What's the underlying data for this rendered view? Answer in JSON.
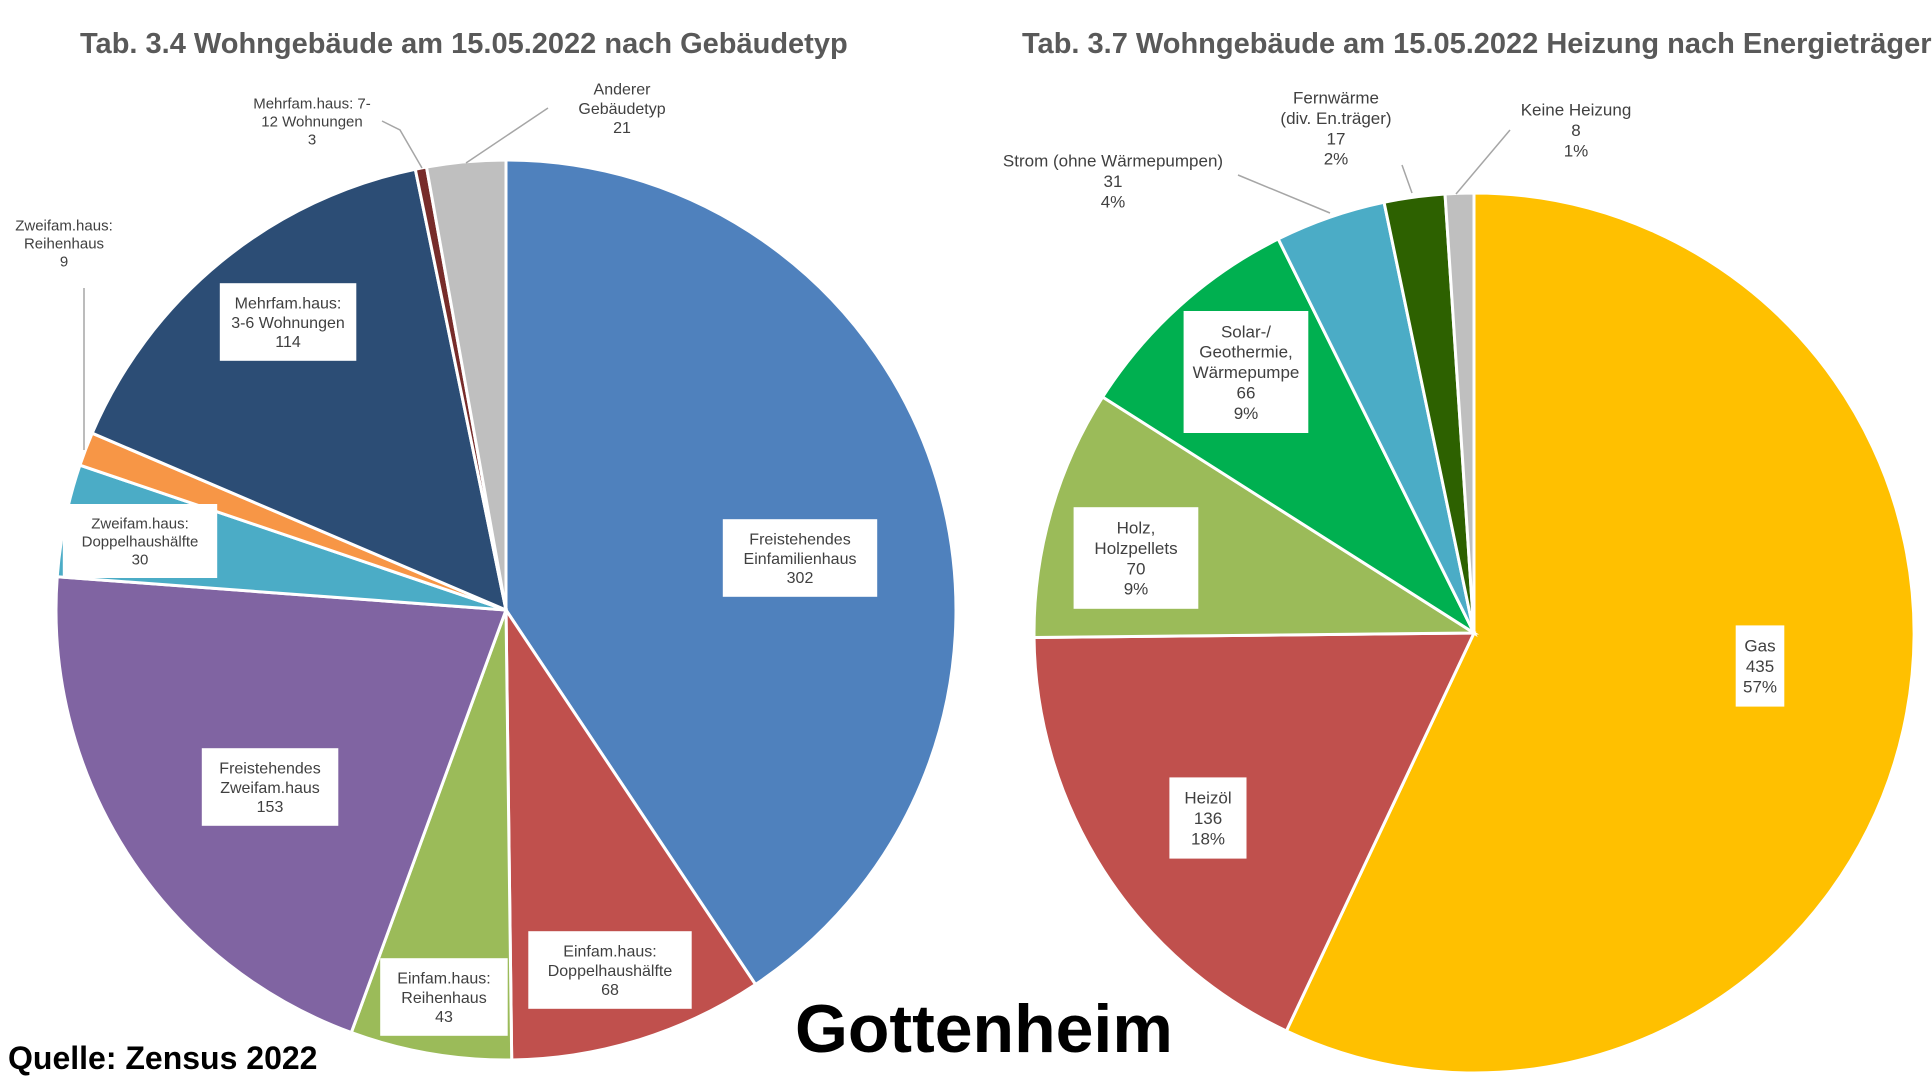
{
  "chart_data": [
    {
      "type": "pie",
      "title": "Tab. 3.4 Wohngebäude am 15.05.2022 nach Gebäudetyp",
      "slices": [
        {
          "label": [
            "Freistehendes",
            "Einfamilienhaus"
          ],
          "value": 302,
          "color": "#4f81bd"
        },
        {
          "label": [
            "Einfam.haus:",
            "Doppelhaushälfte"
          ],
          "value": 68,
          "color": "#c0504d"
        },
        {
          "label": [
            "Einfam.haus:",
            "Reihenhaus"
          ],
          "value": 43,
          "color": "#9bbb59"
        },
        {
          "label": [
            "Freistehendes",
            "Zweifam.haus"
          ],
          "value": 153,
          "color": "#8064a2"
        },
        {
          "label": [
            "Zweifam.haus:",
            "Doppelhaushälfte"
          ],
          "value": 30,
          "color": "#4bacc6"
        },
        {
          "label": [
            "Zweifam.haus:",
            "Reihenhaus"
          ],
          "value": 9,
          "color": "#f79646"
        },
        {
          "label": [
            "Mehrfam.haus:",
            "3-6 Wohnungen"
          ],
          "value": 114,
          "color": "#2c4d75"
        },
        {
          "label": [
            "Mehrfam.haus: 7-",
            "12 Wohnungen"
          ],
          "value": 3,
          "color": "#772c2a"
        },
        {
          "label": [
            "Anderer",
            "Gebäudetyp"
          ],
          "value": 21,
          "color": "#bfbfbf"
        }
      ]
    },
    {
      "type": "pie",
      "title": "Tab. 3.7 Wohngebäude am 15.05.2022 Heizung nach Energieträger",
      "slices": [
        {
          "label": [
            "Gas"
          ],
          "value": 435,
          "percent": "57%",
          "color": "#ffc000"
        },
        {
          "label": [
            "Heizöl"
          ],
          "value": 136,
          "percent": "18%",
          "color": "#c0504d"
        },
        {
          "label": [
            "Holz,",
            "Holzpellets"
          ],
          "value": 70,
          "percent": "9%",
          "color": "#9bbb59"
        },
        {
          "label": [
            "Solar-/",
            "Geothermie,",
            "Wärmepumpe"
          ],
          "value": 66,
          "percent": "9%",
          "color": "#00b050"
        },
        {
          "label": [
            "Strom (ohne Wärmepumpen)"
          ],
          "value": 31,
          "percent": "4%",
          "color": "#4bacc6"
        },
        {
          "label": [
            "Fernwärme",
            "(div. En.träger)"
          ],
          "value": 17,
          "percent": "2%",
          "color": "#2d6100"
        },
        {
          "label": [
            "Keine Heizung"
          ],
          "value": 8,
          "percent": "1%",
          "color": "#bfbfbf"
        }
      ]
    }
  ],
  "footer": {
    "place": "Gottenheim",
    "source": "Quelle: Zensus 2022"
  }
}
